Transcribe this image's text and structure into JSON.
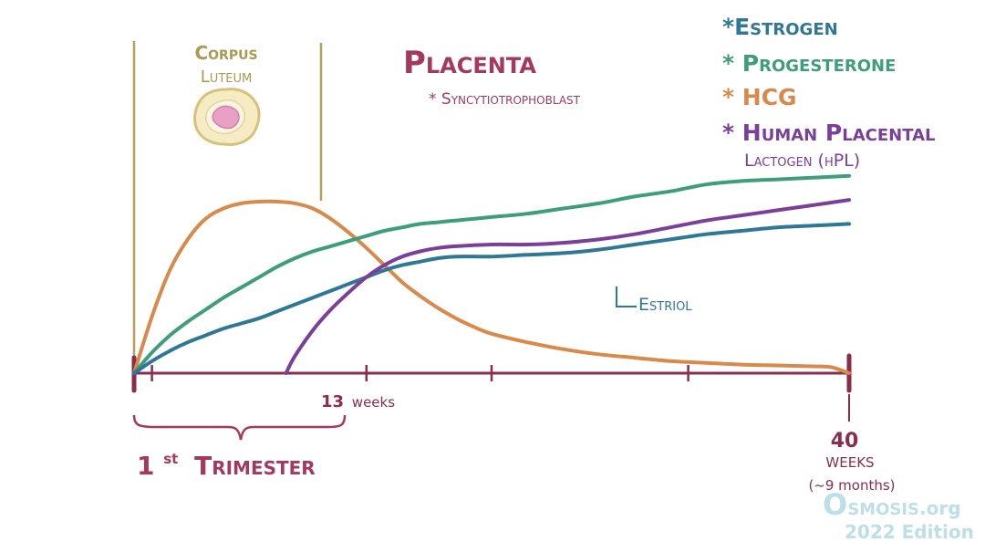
{
  "chart_data": {
    "type": "line",
    "x_range": [
      0,
      40
    ],
    "xlabel": "",
    "ylabel": "",
    "grid": false,
    "x_ticks": [
      1,
      13,
      20,
      31
    ],
    "x_tick_labels": [
      {
        "x": 13,
        "label": "13",
        "unit": "weeks"
      }
    ],
    "end_label": {
      "value": "40",
      "unit": "WEEKS",
      "note": "(~9 months)"
    },
    "legend_position": "top-right",
    "legend": [
      {
        "key": "estrogen",
        "label": "*Estrogen",
        "color": "#2f7797"
      },
      {
        "key": "progesterone",
        "label": "* Progesterone",
        "color": "#3e9e7b"
      },
      {
        "key": "hcg",
        "label": "* HCG",
        "color": "#d9894a"
      },
      {
        "key": "hpl",
        "label": "* Human Placental",
        "label2": "Lactogen (hPL)",
        "color": "#7a3f9a"
      }
    ],
    "series": [
      {
        "key": "hcg",
        "color": "#d9894a",
        "points": [
          [
            0,
            0.0
          ],
          [
            1,
            0.33
          ],
          [
            2,
            0.6
          ],
          [
            3,
            0.78
          ],
          [
            4,
            0.9
          ],
          [
            5,
            0.96
          ],
          [
            6,
            0.99
          ],
          [
            7,
            1.0
          ],
          [
            8,
            1.0
          ],
          [
            9,
            0.99
          ],
          [
            10,
            0.96
          ],
          [
            11,
            0.9
          ],
          [
            12,
            0.82
          ],
          [
            13,
            0.73
          ],
          [
            14,
            0.63
          ],
          [
            15,
            0.53
          ],
          [
            16,
            0.45
          ],
          [
            17,
            0.38
          ],
          [
            18,
            0.32
          ],
          [
            19,
            0.27
          ],
          [
            20,
            0.23
          ],
          [
            22,
            0.18
          ],
          [
            24,
            0.14
          ],
          [
            26,
            0.11
          ],
          [
            28,
            0.09
          ],
          [
            30,
            0.07
          ],
          [
            32,
            0.06
          ],
          [
            34,
            0.05
          ],
          [
            36,
            0.045
          ],
          [
            38,
            0.04
          ],
          [
            39,
            0.035
          ],
          [
            40,
            0.0
          ]
        ]
      },
      {
        "key": "progesterone",
        "color": "#3e9e7b",
        "points": [
          [
            0,
            0.0
          ],
          [
            1,
            0.12
          ],
          [
            2,
            0.22
          ],
          [
            3,
            0.3
          ],
          [
            4,
            0.37
          ],
          [
            5,
            0.44
          ],
          [
            6,
            0.5
          ],
          [
            7,
            0.56
          ],
          [
            8,
            0.62
          ],
          [
            9,
            0.67
          ],
          [
            10,
            0.71
          ],
          [
            11,
            0.74
          ],
          [
            12,
            0.77
          ],
          [
            13,
            0.8
          ],
          [
            14,
            0.83
          ],
          [
            15,
            0.85
          ],
          [
            16,
            0.87
          ],
          [
            17,
            0.88
          ],
          [
            18,
            0.89
          ],
          [
            20,
            0.91
          ],
          [
            22,
            0.93
          ],
          [
            24,
            0.96
          ],
          [
            26,
            0.99
          ],
          [
            28,
            1.03
          ],
          [
            30,
            1.06
          ],
          [
            32,
            1.1
          ],
          [
            34,
            1.12
          ],
          [
            36,
            1.13
          ],
          [
            38,
            1.14
          ],
          [
            40,
            1.15
          ]
        ]
      },
      {
        "key": "estrogen",
        "color": "#2f7797",
        "points": [
          [
            0,
            0.0
          ],
          [
            1,
            0.07
          ],
          [
            2,
            0.13
          ],
          [
            3,
            0.18
          ],
          [
            4,
            0.22
          ],
          [
            5,
            0.26
          ],
          [
            6,
            0.29
          ],
          [
            7,
            0.32
          ],
          [
            8,
            0.36
          ],
          [
            9,
            0.4
          ],
          [
            10,
            0.44
          ],
          [
            11,
            0.48
          ],
          [
            12,
            0.52
          ],
          [
            13,
            0.56
          ],
          [
            14,
            0.6
          ],
          [
            15,
            0.63
          ],
          [
            16,
            0.65
          ],
          [
            17,
            0.67
          ],
          [
            18,
            0.68
          ],
          [
            20,
            0.68
          ],
          [
            22,
            0.69
          ],
          [
            24,
            0.7
          ],
          [
            26,
            0.72
          ],
          [
            28,
            0.75
          ],
          [
            30,
            0.78
          ],
          [
            32,
            0.81
          ],
          [
            34,
            0.83
          ],
          [
            36,
            0.85
          ],
          [
            38,
            0.86
          ],
          [
            40,
            0.87
          ]
        ]
      },
      {
        "key": "hpl",
        "color": "#7a3f9a",
        "points": [
          [
            8.5,
            0.0
          ],
          [
            9,
            0.1
          ],
          [
            10,
            0.25
          ],
          [
            11,
            0.37
          ],
          [
            12,
            0.47
          ],
          [
            13,
            0.56
          ],
          [
            14,
            0.63
          ],
          [
            15,
            0.68
          ],
          [
            16,
            0.71
          ],
          [
            17,
            0.73
          ],
          [
            18,
            0.74
          ],
          [
            20,
            0.75
          ],
          [
            22,
            0.75
          ],
          [
            24,
            0.76
          ],
          [
            26,
            0.78
          ],
          [
            28,
            0.81
          ],
          [
            30,
            0.85
          ],
          [
            32,
            0.89
          ],
          [
            34,
            0.92
          ],
          [
            36,
            0.95
          ],
          [
            38,
            0.98
          ],
          [
            40,
            1.01
          ]
        ]
      }
    ],
    "annotations": {
      "corpus_luteum": [
        "Corpus",
        "Luteum"
      ],
      "placenta_title": "Placenta",
      "placenta_sub": "* Syncytiotrophoblast",
      "estriol": "Estriol",
      "trimester_prefix": "1",
      "trimester_sup": "st",
      "trimester": "Trimester"
    }
  },
  "watermark": {
    "brand_o": "O",
    "brand_rest": "smosis",
    "brand_org": ".org",
    "edition": "2022 Edition"
  },
  "colors": {
    "axis": "#8b2c4e",
    "gold": "#b8a05a",
    "corpus_text": "#a99a52",
    "placenta": "#a33a5e",
    "watermark": "#bcdfe8"
  }
}
